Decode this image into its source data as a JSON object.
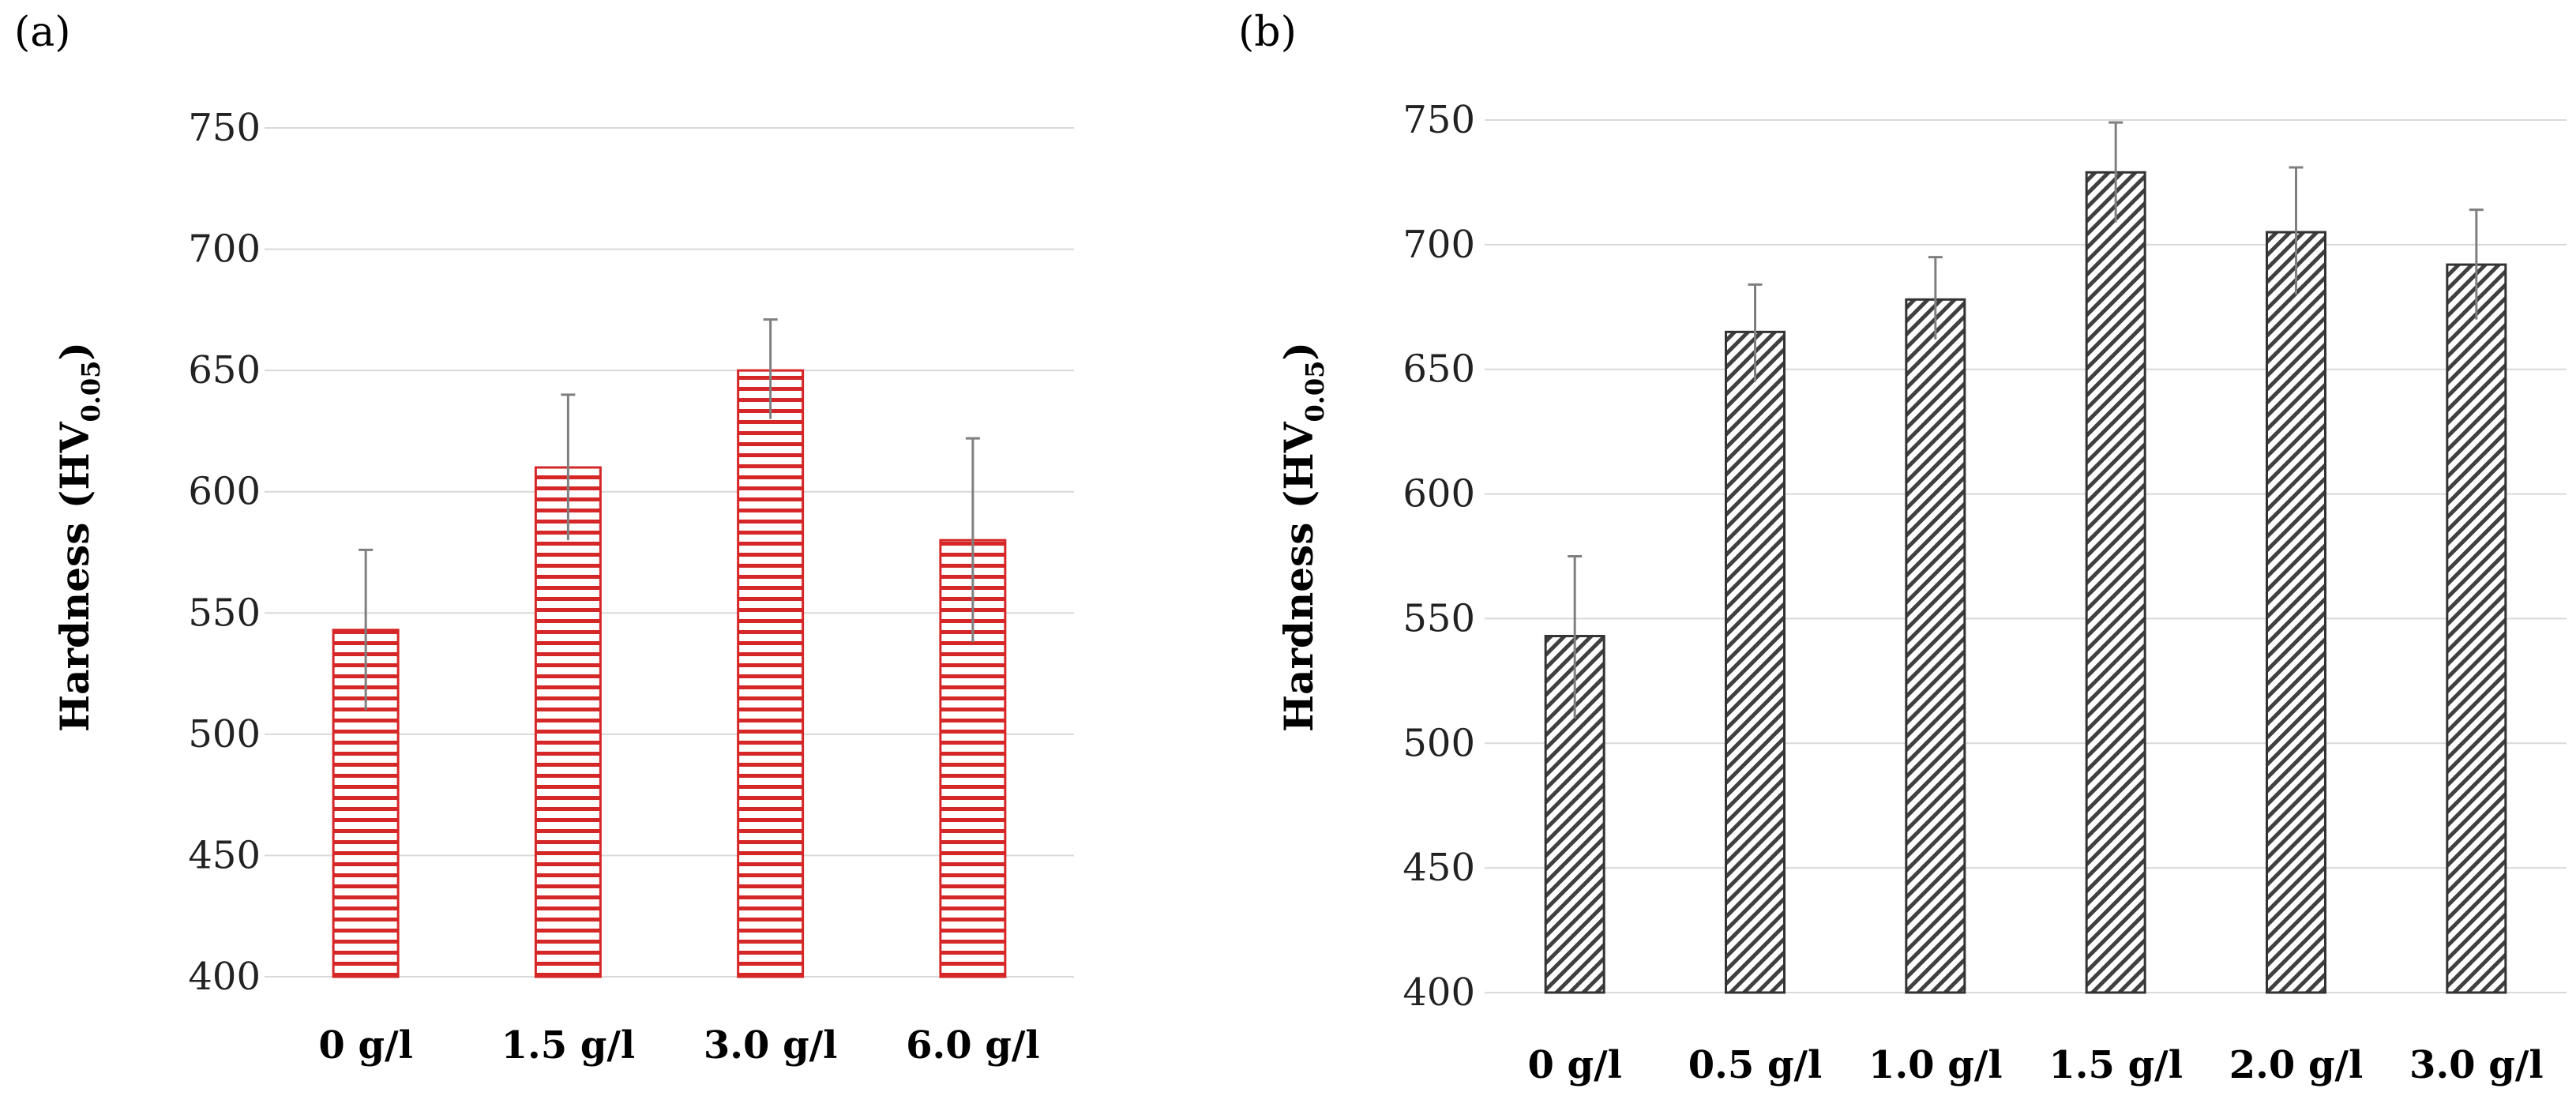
{
  "chart_data": [
    {
      "type": "bar",
      "panel_label": "(a)",
      "categories": [
        "0 g/l",
        "1.5 g/l",
        "3.0 g/l",
        "6.0 g/l"
      ],
      "values": [
        543,
        610,
        650,
        580
      ],
      "error_high": [
        576,
        640,
        671,
        622
      ],
      "error_low": [
        510,
        580,
        630,
        538
      ],
      "ylabel_main": "Hardness (HV",
      "ylabel_sub": "0.05",
      "ylabel_close": ")",
      "ylim": [
        400,
        750
      ],
      "yticks": [
        400,
        450,
        500,
        550,
        600,
        650,
        700,
        750
      ],
      "grid": true,
      "bar_style": "red horizontal stripes",
      "color": "#d62728"
    },
    {
      "type": "bar",
      "panel_label": "(b)",
      "categories": [
        "0 g/l",
        "0.5 g/l",
        "1.0 g/l",
        "1.5 g/l",
        "2.0 g/l",
        "3.0 g/l"
      ],
      "values": [
        543,
        665,
        678,
        729,
        705,
        692
      ],
      "error_high": [
        575,
        684,
        695,
        749,
        731,
        714
      ],
      "error_low": [
        510,
        645,
        662,
        709,
        680,
        670
      ],
      "ylabel_main": "Hardness (HV",
      "ylabel_sub": "0.05",
      "ylabel_close": ")",
      "ylim": [
        400,
        750
      ],
      "yticks": [
        400,
        450,
        500,
        550,
        600,
        650,
        700,
        750
      ],
      "grid": true,
      "bar_style": "dark diagonal hatch",
      "color": "#404040"
    }
  ]
}
